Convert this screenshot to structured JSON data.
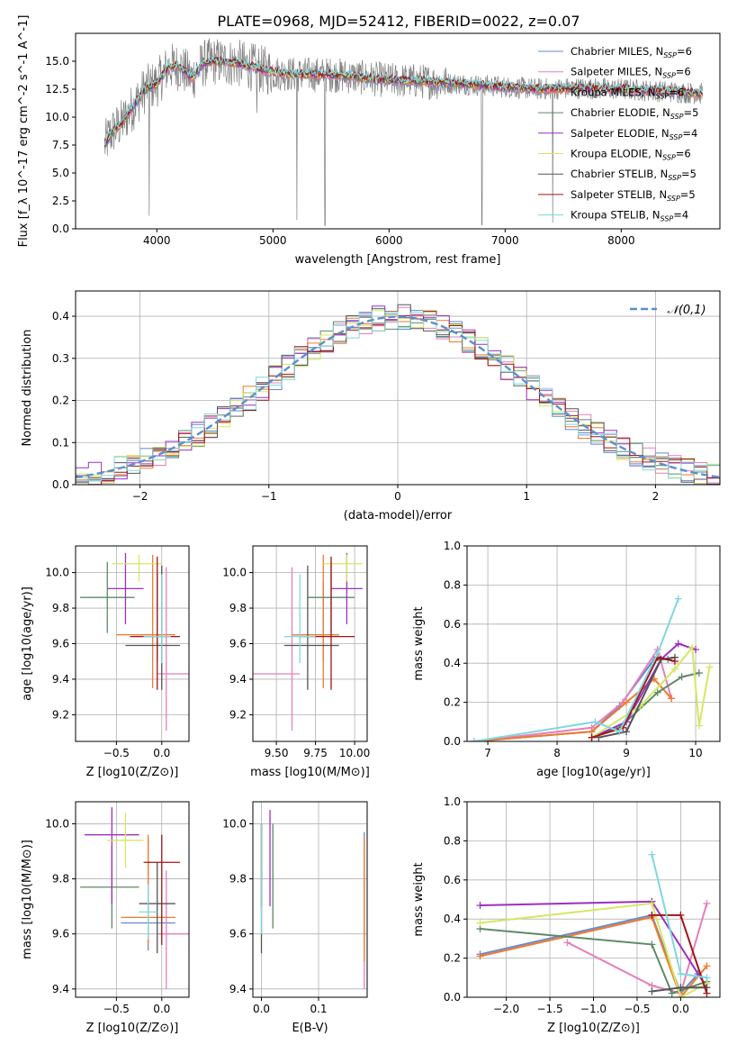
{
  "figure": {
    "title": "PLATE=0968, MJD=52412, FIBERID=0022, z=0.07"
  },
  "models": [
    {
      "name": "Chabrier MILES",
      "nssp": "6",
      "color": "#6688cc"
    },
    {
      "name": "Salpeter MILES",
      "nssp": "6",
      "color": "#e77fbb"
    },
    {
      "name": "Kroupa MILES",
      "nssp": "6",
      "color": "#ee7a2e"
    },
    {
      "name": "Chabrier ELODIE",
      "nssp": "5",
      "color": "#5e8a66"
    },
    {
      "name": "Salpeter ELODIE",
      "nssp": "4",
      "color": "#9b30c0"
    },
    {
      "name": "Kroupa ELODIE",
      "nssp": "6",
      "color": "#d3e862"
    },
    {
      "name": "Chabrier STELIB",
      "nssp": "5",
      "color": "#555555"
    },
    {
      "name": "Salpeter STELIB",
      "nssp": "5",
      "color": "#a01515"
    },
    {
      "name": "Kroupa STELIB",
      "nssp": "4",
      "color": "#7fd8dc"
    }
  ],
  "chart_data": [
    {
      "id": "spectrum",
      "type": "line",
      "xlabel": "wavelength [Angstrom, rest frame]",
      "ylabel": "Flux [f_λ 10^-17 erg cm^-2 s^-1 A^-1]",
      "xlim": [
        3300,
        8850
      ],
      "ylim": [
        0,
        17.5
      ],
      "xticks": [
        4000,
        5000,
        6000,
        7000,
        8000
      ],
      "yticks": [
        0.0,
        2.5,
        5.0,
        7.5,
        10.0,
        12.5,
        15.0
      ],
      "continuum": {
        "x": [
          3550,
          3600,
          3700,
          3800,
          3900,
          4000,
          4100,
          4200,
          4300,
          4400,
          4500,
          4700,
          5000,
          5200,
          5500,
          5800,
          6000,
          6300,
          6600,
          7000,
          7300,
          7600,
          8000,
          8400,
          8700
        ],
        "y": [
          7.5,
          8.5,
          9.5,
          11.0,
          12.5,
          13.0,
          14.5,
          14.5,
          13.5,
          14.8,
          15.0,
          14.8,
          14.0,
          13.8,
          13.8,
          13.5,
          13.3,
          13.2,
          13.0,
          12.7,
          12.5,
          12.6,
          12.5,
          12.3,
          12.1
        ]
      },
      "absorption_lines": [
        {
          "x": 3934,
          "depth": 11.5
        },
        {
          "x": 4862,
          "depth": 4
        },
        {
          "x": 5206,
          "depth": 13
        },
        {
          "x": 5447,
          "depth": 13.5
        },
        {
          "x": 6800,
          "depth": 12.5
        },
        {
          "x": 7410,
          "depth": 12
        }
      ],
      "noise_level": "high at blue end, decreasing to the red"
    },
    {
      "id": "residuals",
      "type": "histogram",
      "xlabel": "(data-model)/error",
      "ylabel": "Normed distribution",
      "xlim": [
        -2.5,
        2.5
      ],
      "ylim": [
        0,
        0.46
      ],
      "xticks": [
        -2,
        -1,
        0,
        1,
        2
      ],
      "yticks": [
        0.0,
        0.1,
        0.2,
        0.3,
        0.4
      ],
      "bin_width": 0.1,
      "gaussian": {
        "mu": 0,
        "sigma": 1,
        "legend": "𝒩(0,1)"
      },
      "series_jitter": "each model histogram scatters around the unit gaussian"
    },
    {
      "id": "age_vs_Z",
      "type": "errorbar",
      "xlabel": "Z [log10(Z/Z⊙)]",
      "ylabel": "age  [log10(age/yr)]",
      "xlim": [
        -0.95,
        0.3
      ],
      "ylim": [
        9.05,
        10.15
      ],
      "xticks": [
        -0.5,
        0.0
      ],
      "yticks": [
        9.2,
        9.4,
        9.6,
        9.8,
        10.0
      ],
      "points": [
        {
          "model": 0,
          "x": -0.05,
          "y": 9.65,
          "xerr": [
            0.25,
            0.05
          ],
          "yerr": [
            0.15,
            0.35
          ]
        },
        {
          "model": 1,
          "x": 0.05,
          "y": 9.43,
          "xerr": [
            0.1,
            0.25
          ],
          "yerr": [
            0.32,
            0.6
          ]
        },
        {
          "model": 2,
          "x": -0.1,
          "y": 9.65,
          "xerr": [
            0.4,
            0.25
          ],
          "yerr": [
            0.3,
            0.45
          ]
        },
        {
          "model": 3,
          "x": -0.6,
          "y": 9.86,
          "xerr": [
            0.3,
            0.3
          ],
          "yerr": [
            0.2,
            0.2
          ]
        },
        {
          "model": 4,
          "x": -0.4,
          "y": 9.91,
          "xerr": [
            0.2,
            0.2
          ],
          "yerr": [
            0.2,
            0.2
          ]
        },
        {
          "model": 5,
          "x": -0.25,
          "y": 10.05,
          "xerr": [
            0.3,
            0.25
          ],
          "yerr": [
            0.1,
            0.05
          ]
        },
        {
          "model": 6,
          "x": 0.0,
          "y": 9.59,
          "xerr": [
            0.4,
            0.2
          ],
          "yerr": [
            0.25,
            0.45
          ]
        },
        {
          "model": 7,
          "x": -0.05,
          "y": 9.64,
          "xerr": [
            0.3,
            0.25
          ],
          "yerr": [
            0.3,
            0.45
          ]
        },
        {
          "model": 8,
          "x": 0.0,
          "y": 9.64,
          "xerr": [
            0.2,
            0.1
          ],
          "yerr": [
            0.15,
            0.35
          ]
        }
      ]
    },
    {
      "id": "age_vs_mass",
      "type": "errorbar",
      "xlabel": "mass [log10(M/M⊙)]",
      "ylabel": "",
      "xlim": [
        9.35,
        10.08
      ],
      "ylim": [
        9.05,
        10.15
      ],
      "xticks": [
        9.5,
        9.75,
        10.0
      ],
      "yticks": [
        9.2,
        9.4,
        9.6,
        9.8,
        10.0
      ],
      "points": [
        {
          "model": 0,
          "x": 9.8,
          "y": 9.65,
          "xerr": [
            0.2,
            0.1
          ],
          "yerr": [
            0.15,
            0.3
          ]
        },
        {
          "model": 1,
          "x": 9.6,
          "y": 9.43,
          "xerr": [
            0.25,
            0.05
          ],
          "yerr": [
            0.32,
            0.6
          ]
        },
        {
          "model": 2,
          "x": 9.8,
          "y": 9.65,
          "xerr": [
            0.2,
            0.1
          ],
          "yerr": [
            0.3,
            0.45
          ]
        },
        {
          "model": 3,
          "x": 9.85,
          "y": 9.86,
          "xerr": [
            0.15,
            0.15
          ],
          "yerr": [
            0.2,
            0.2
          ]
        },
        {
          "model": 4,
          "x": 9.95,
          "y": 9.91,
          "xerr": [
            0.1,
            0.1
          ],
          "yerr": [
            0.2,
            0.2
          ]
        },
        {
          "model": 5,
          "x": 9.95,
          "y": 10.05,
          "xerr": [
            0.15,
            0.1
          ],
          "yerr": [
            0.1,
            0.05
          ]
        },
        {
          "model": 6,
          "x": 9.7,
          "y": 9.59,
          "xerr": [
            0.15,
            0.2
          ],
          "yerr": [
            0.25,
            0.45
          ]
        },
        {
          "model": 7,
          "x": 9.85,
          "y": 9.64,
          "xerr": [
            0.2,
            0.15
          ],
          "yerr": [
            0.3,
            0.45
          ]
        },
        {
          "model": 8,
          "x": 9.65,
          "y": 9.64,
          "xerr": [
            0.1,
            0.1
          ],
          "yerr": [
            0.15,
            0.35
          ]
        }
      ]
    },
    {
      "id": "mass_weight_vs_age",
      "type": "line",
      "xlabel": "age  [log10(age/yr)]",
      "ylabel": "mass weight",
      "xlim": [
        6.7,
        10.35
      ],
      "ylim": [
        0,
        1.0
      ],
      "xticks": [
        7,
        8,
        9,
        10
      ],
      "yticks": [
        0.0,
        0.2,
        0.4,
        0.6,
        0.8,
        1.0
      ],
      "series": [
        {
          "model": 0,
          "x": [
            6.8,
            8.5,
            8.9,
            9.4,
            9.6
          ],
          "y": [
            0.0,
            0.05,
            0.18,
            0.42,
            0.42
          ]
        },
        {
          "model": 1,
          "x": [
            6.8,
            8.5,
            8.95,
            9.45,
            9.65
          ],
          "y": [
            0.0,
            0.07,
            0.2,
            0.47,
            0.22
          ]
        },
        {
          "model": 2,
          "x": [
            6.8,
            8.5,
            9.0,
            9.4,
            9.65
          ],
          "y": [
            0.0,
            0.05,
            0.2,
            0.32,
            0.22
          ]
        },
        {
          "model": 3,
          "x": [
            8.5,
            8.9,
            9.45,
            9.8,
            10.05
          ],
          "y": [
            0.02,
            0.07,
            0.25,
            0.33,
            0.35
          ]
        },
        {
          "model": 4,
          "x": [
            8.5,
            9.0,
            9.5,
            9.75,
            10.0
          ],
          "y": [
            0.02,
            0.1,
            0.42,
            0.5,
            0.47
          ]
        },
        {
          "model": 5,
          "x": [
            8.5,
            9.2,
            9.7,
            9.95,
            10.05,
            10.2
          ],
          "y": [
            0.02,
            0.18,
            0.37,
            0.48,
            0.08,
            0.38
          ]
        },
        {
          "model": 6,
          "x": [
            8.6,
            9.0,
            9.5,
            9.7
          ],
          "y": [
            0.02,
            0.05,
            0.42,
            0.43
          ]
        },
        {
          "model": 7,
          "x": [
            8.5,
            8.95,
            9.45,
            9.7
          ],
          "y": [
            0.02,
            0.07,
            0.43,
            0.41
          ]
        },
        {
          "model": 8,
          "x": [
            6.8,
            8.55,
            8.9,
            9.45,
            9.75
          ],
          "y": [
            0.0,
            0.1,
            0.05,
            0.45,
            0.73
          ]
        }
      ]
    },
    {
      "id": "mass_vs_Z",
      "type": "errorbar",
      "xlabel": "Z [log10(Z/Z⊙)]",
      "ylabel": "mass [log10(M/M⊙)]",
      "xlim": [
        -0.95,
        0.3
      ],
      "ylim": [
        9.37,
        10.08
      ],
      "xticks": [
        -0.5,
        0.0
      ],
      "yticks": [
        9.4,
        9.6,
        9.8,
        10.0
      ],
      "points": [
        {
          "model": 0,
          "x": -0.15,
          "y": 9.64,
          "xerr": [
            0.3,
            0.3
          ],
          "yerr": [
            0.1,
            0.3
          ]
        },
        {
          "model": 1,
          "x": 0.05,
          "y": 9.6,
          "xerr": [
            0.1,
            0.25
          ],
          "yerr": [
            0.2,
            0.23
          ]
        },
        {
          "model": 2,
          "x": -0.15,
          "y": 9.66,
          "xerr": [
            0.3,
            0.3
          ],
          "yerr": [
            0.1,
            0.3
          ]
        },
        {
          "model": 3,
          "x": -0.55,
          "y": 9.77,
          "xerr": [
            0.35,
            0.3
          ],
          "yerr": [
            0.15,
            0.15
          ]
        },
        {
          "model": 4,
          "x": -0.55,
          "y": 9.96,
          "xerr": [
            0.3,
            0.3
          ],
          "yerr": [
            0.25,
            0.1
          ]
        },
        {
          "model": 5,
          "x": -0.4,
          "y": 9.94,
          "xerr": [
            0.2,
            0.2
          ],
          "yerr": [
            0.1,
            0.1
          ]
        },
        {
          "model": 6,
          "x": -0.05,
          "y": 9.71,
          "xerr": [
            0.2,
            0.2
          ],
          "yerr": [
            0.18,
            0.15
          ]
        },
        {
          "model": 7,
          "x": 0.0,
          "y": 9.86,
          "xerr": [
            0.2,
            0.2
          ],
          "yerr": [
            0.3,
            0.1
          ]
        },
        {
          "model": 8,
          "x": -0.15,
          "y": 9.68,
          "xerr": [
            0.1,
            0.1
          ],
          "yerr": [
            0.1,
            0.1
          ]
        }
      ]
    },
    {
      "id": "mass_vs_ebv",
      "type": "errorbar",
      "xlabel": "E(B-V)",
      "ylabel": "",
      "xlim": [
        -0.015,
        0.185
      ],
      "ylim": [
        9.37,
        10.08
      ],
      "xticks": [
        0.0,
        0.1
      ],
      "yticks": [
        9.4,
        9.6,
        9.8,
        10.0
      ],
      "points": [
        {
          "model": 0,
          "x": 0.18,
          "y": 9.7,
          "yerr": [
            0.15,
            0.27
          ]
        },
        {
          "model": 1,
          "x": 0.18,
          "y": 9.6,
          "yerr": [
            0.2,
            0.35
          ]
        },
        {
          "model": 2,
          "x": 0.18,
          "y": 9.7,
          "yerr": [
            0.2,
            0.25
          ]
        },
        {
          "model": 3,
          "x": 0.02,
          "y": 9.85,
          "yerr": [
            0.23,
            0.15
          ]
        },
        {
          "model": 4,
          "x": 0.015,
          "y": 9.9,
          "yerr": [
            0.2,
            0.15
          ]
        },
        {
          "model": 5,
          "x": 0.0,
          "y": 9.9,
          "yerr": [
            0.1,
            0.1
          ]
        },
        {
          "model": 6,
          "x": 0.0,
          "y": 9.8,
          "yerr": [
            0.27,
            0.2
          ]
        },
        {
          "model": 7,
          "x": 0.0,
          "y": 9.9,
          "yerr": [
            0.2,
            0.1
          ]
        },
        {
          "model": 8,
          "x": 0.0,
          "y": 9.8,
          "yerr": [
            0.2,
            0.2
          ]
        }
      ]
    },
    {
      "id": "mass_weight_vs_Z",
      "type": "line",
      "xlabel": "Z [log10(Z/Z⊙)]",
      "ylabel": "mass weight",
      "xlim": [
        -2.45,
        0.45
      ],
      "ylim": [
        0,
        1.0
      ],
      "xticks": [
        -2.0,
        -1.5,
        -1.0,
        -0.5,
        0.0
      ],
      "yticks": [
        0.0,
        0.2,
        0.4,
        0.6,
        0.8,
        1.0
      ],
      "series": [
        {
          "model": 0,
          "x": [
            -2.3,
            -0.33,
            0.0,
            0.2
          ],
          "y": [
            0.22,
            0.42,
            0.02,
            0.12
          ]
        },
        {
          "model": 1,
          "x": [
            -1.3,
            -0.33,
            0.0,
            0.3
          ],
          "y": [
            0.28,
            0.06,
            0.02,
            0.48
          ]
        },
        {
          "model": 2,
          "x": [
            -2.3,
            -0.33,
            0.0,
            0.3
          ],
          "y": [
            0.21,
            0.41,
            0.0,
            0.16
          ]
        },
        {
          "model": 3,
          "x": [
            -2.3,
            -0.33,
            -0.1,
            0.3
          ],
          "y": [
            0.35,
            0.27,
            0.02,
            0.08
          ]
        },
        {
          "model": 4,
          "x": [
            -2.3,
            -0.33,
            0.3
          ],
          "y": [
            0.47,
            0.49,
            0.05
          ]
        },
        {
          "model": 5,
          "x": [
            -2.3,
            -0.33,
            0.0,
            0.3
          ],
          "y": [
            0.38,
            0.48,
            0.0,
            0.07
          ]
        },
        {
          "model": 6,
          "x": [
            -0.33,
            0.0,
            0.3
          ],
          "y": [
            0.03,
            0.05,
            0.05
          ]
        },
        {
          "model": 7,
          "x": [
            -0.33,
            0.0,
            0.3
          ],
          "y": [
            0.42,
            0.42,
            0.02
          ]
        },
        {
          "model": 8,
          "x": [
            -0.33,
            0.0,
            0.3
          ],
          "y": [
            0.73,
            0.12,
            0.1
          ]
        }
      ]
    }
  ]
}
